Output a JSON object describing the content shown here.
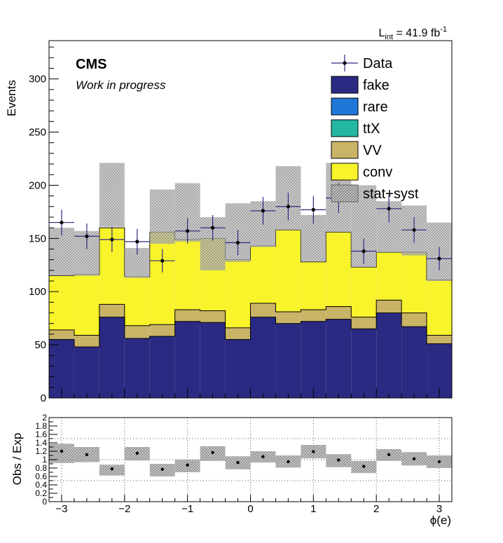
{
  "header": {
    "experiment": "CMS",
    "status": "Work in progress",
    "lumi_main": "L",
    "lumi_sub": "int",
    "lumi_value": " = 41.9 fb",
    "lumi_exp": "-1"
  },
  "colors": {
    "fake": "#2b2a83",
    "rare": "#1f78d8",
    "ttX": "#23b6a3",
    "VV": "#c8b366",
    "conv": "#f8f32b",
    "band": "#9a9a9a",
    "data": "#000000",
    "data_error": "#2b2a83"
  },
  "chart_data": [
    {
      "type": "bar",
      "stacked": true,
      "title": "",
      "xlabel": "",
      "ylabel": "Events",
      "xlim": [
        -3.2,
        3.2
      ],
      "ylim": [
        0,
        336
      ],
      "bin_edges": [
        -3.2,
        -2.8,
        -2.4,
        -2.0,
        -1.6,
        -1.2,
        -0.8,
        -0.4,
        0.0,
        0.4,
        0.8,
        1.2,
        1.6,
        2.0,
        2.4,
        2.8,
        3.2
      ],
      "series": [
        {
          "name": "fake",
          "values": [
            55,
            48,
            76,
            56,
            58,
            72,
            71,
            55,
            76,
            70,
            72,
            74,
            65,
            80,
            67,
            51
          ]
        },
        {
          "name": "rare",
          "values": [
            0,
            0,
            0,
            0,
            0,
            0,
            0,
            0,
            0,
            0,
            0,
            0,
            0,
            0,
            0,
            0
          ]
        },
        {
          "name": "ttX",
          "values": [
            0,
            0,
            0,
            0,
            0,
            0,
            0,
            0,
            0,
            0,
            0,
            0,
            0,
            0,
            0,
            0
          ]
        },
        {
          "name": "VV",
          "values": [
            9,
            11,
            12,
            12,
            11,
            11,
            11,
            11,
            13,
            11,
            11,
            12,
            11,
            12,
            13,
            8
          ]
        },
        {
          "name": "conv",
          "values": [
            51,
            57,
            72,
            46,
            87,
            66,
            68,
            64,
            54,
            77,
            45,
            70,
            47,
            45,
            57,
            52
          ]
        },
        {
          "name": "stat+syst",
          "values": [
            24,
            20,
            31,
            14,
            12,
            27,
            20,
            18,
            21,
            30,
            23,
            33,
            37,
            24,
            23,
            26
          ]
        }
      ],
      "stat_syst_band": [
        {
          "low": 115,
          "high": 160
        },
        {
          "low": 115,
          "high": 157
        },
        {
          "low": 161,
          "high": 221
        },
        {
          "low": 113,
          "high": 141
        },
        {
          "low": 145,
          "high": 196
        },
        {
          "low": 147,
          "high": 202
        },
        {
          "low": 120,
          "high": 170
        },
        {
          "low": 128,
          "high": 183
        },
        {
          "low": 142,
          "high": 185
        },
        {
          "low": 158,
          "high": 218
        },
        {
          "low": 128,
          "high": 172
        },
        {
          "low": 156,
          "high": 221
        },
        {
          "low": 123,
          "high": 200
        },
        {
          "low": 137,
          "high": 185
        },
        {
          "low": 134,
          "high": 181
        },
        {
          "low": 110,
          "high": 165
        }
      ],
      "data_points": [
        {
          "x": -3.0,
          "y": 165,
          "err": 12
        },
        {
          "x": -2.6,
          "y": 152,
          "err": 12
        },
        {
          "x": -2.2,
          "y": 149,
          "err": 12
        },
        {
          "x": -1.8,
          "y": 147,
          "err": 12
        },
        {
          "x": -1.4,
          "y": 129,
          "err": 11
        },
        {
          "x": -1.0,
          "y": 157,
          "err": 12
        },
        {
          "x": -0.6,
          "y": 160,
          "err": 12
        },
        {
          "x": -0.2,
          "y": 146,
          "err": 12
        },
        {
          "x": 0.2,
          "y": 176,
          "err": 13
        },
        {
          "x": 0.6,
          "y": 180,
          "err": 13
        },
        {
          "x": 1.0,
          "y": 177,
          "err": 13
        },
        {
          "x": 1.4,
          "y": 188,
          "err": 14
        },
        {
          "x": 1.8,
          "y": 138,
          "err": 12
        },
        {
          "x": 2.2,
          "y": 178,
          "err": 13
        },
        {
          "x": 2.6,
          "y": 158,
          "err": 12
        },
        {
          "x": 3.0,
          "y": 131,
          "err": 11
        }
      ],
      "yticks": [
        "0",
        "50",
        "100",
        "150",
        "200",
        "250",
        "300"
      ],
      "ytick_values": [
        0,
        50,
        100,
        150,
        200,
        250,
        300
      ],
      "legend_entries": [
        "Data",
        "fake",
        "rare",
        "ttX",
        "VV",
        "conv",
        "stat+syst"
      ],
      "legend_position": "top-right",
      "grid": false
    },
    {
      "type": "scatter",
      "title": "",
      "xlabel": "ϕ(e)",
      "ylabel": "Obs / Exp",
      "xlim": [
        -3.2,
        3.2
      ],
      "ylim": [
        0,
        2
      ],
      "grid": true,
      "points": [
        {
          "x": -3.0,
          "y": 1.2,
          "band_low": 0.92,
          "band_high": 1.38
        },
        {
          "x": -2.6,
          "y": 1.12,
          "band_low": 0.94,
          "band_high": 1.3
        },
        {
          "x": -2.2,
          "y": 0.78,
          "band_low": 0.62,
          "band_high": 0.88
        },
        {
          "x": -1.8,
          "y": 1.15,
          "band_low": 0.98,
          "band_high": 1.3
        },
        {
          "x": -1.4,
          "y": 0.77,
          "band_low": 0.6,
          "band_high": 0.9
        },
        {
          "x": -1.0,
          "y": 0.87,
          "band_low": 0.7,
          "band_high": 1.0
        },
        {
          "x": -0.6,
          "y": 1.17,
          "band_low": 0.97,
          "band_high": 1.32
        },
        {
          "x": -0.2,
          "y": 0.93,
          "band_low": 0.77,
          "band_high": 1.08
        },
        {
          "x": 0.2,
          "y": 1.07,
          "band_low": 0.93,
          "band_high": 1.2
        },
        {
          "x": 0.6,
          "y": 0.95,
          "band_low": 0.81,
          "band_high": 1.1
        },
        {
          "x": 1.0,
          "y": 1.19,
          "band_low": 1.03,
          "band_high": 1.35
        },
        {
          "x": 1.4,
          "y": 0.99,
          "band_low": 0.82,
          "band_high": 1.13
        },
        {
          "x": 1.8,
          "y": 0.84,
          "band_low": 0.68,
          "band_high": 0.97
        },
        {
          "x": 2.2,
          "y": 1.12,
          "band_low": 0.97,
          "band_high": 1.25
        },
        {
          "x": 2.6,
          "y": 1.02,
          "band_low": 0.86,
          "band_high": 1.18
        },
        {
          "x": 3.0,
          "y": 0.95,
          "band_low": 0.8,
          "band_high": 1.1
        }
      ],
      "yticks": [
        "0",
        "0.2",
        "0.4",
        "0.6",
        "0.8",
        "1",
        "1.2",
        "1.4",
        "1.6",
        "1.8",
        "2"
      ],
      "ytick_values": [
        0,
        0.2,
        0.4,
        0.6,
        0.8,
        1.0,
        1.2,
        1.4,
        1.6,
        1.8,
        2.0
      ],
      "xticks": [
        "−3",
        "−2",
        "−1",
        "0",
        "1",
        "2",
        "3"
      ],
      "xtick_values": [
        -3,
        -2,
        -1,
        0,
        1,
        2,
        3
      ]
    }
  ]
}
